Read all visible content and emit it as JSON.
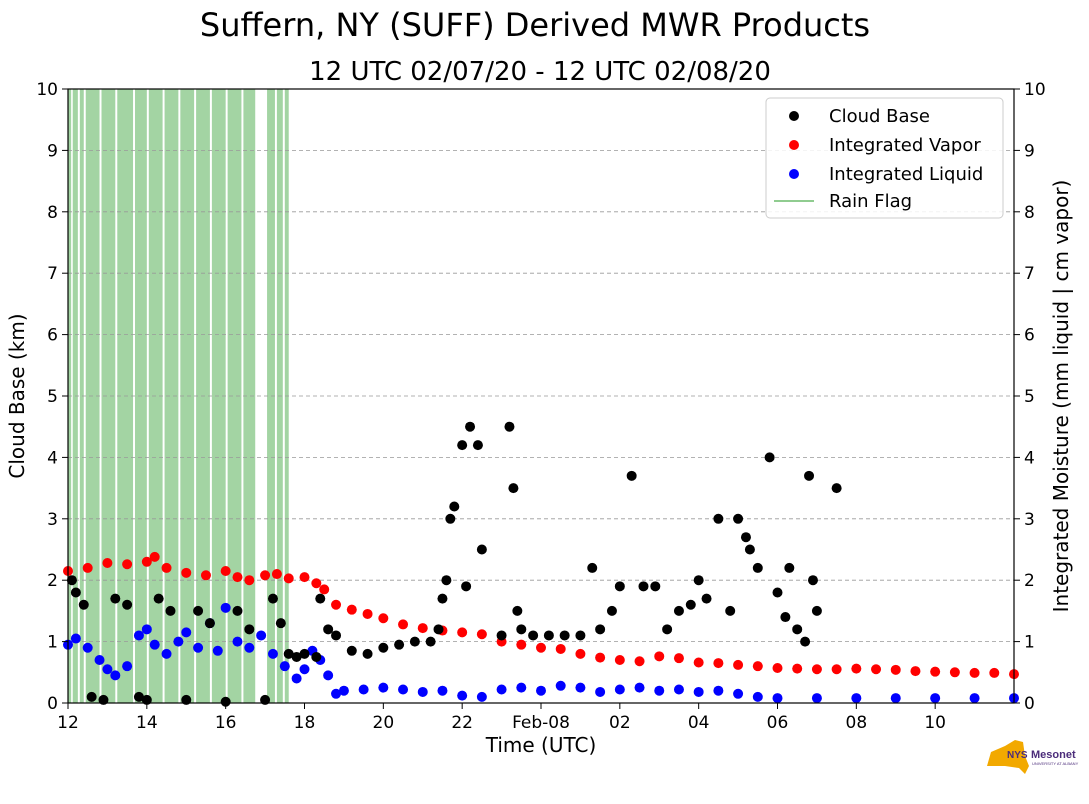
{
  "chart_data": {
    "type": "scatter",
    "title": "Suffern, NY (SUFF) Derived MWR Products",
    "subtitle": "12 UTC 02/07/20 - 12 UTC 02/08/20",
    "xlabel": "Time (UTC)",
    "ylabel": "Cloud Base (km)",
    "y2label": "Integrated Moisture (mm liquid | cm vapor)",
    "x_unit": "hours since 12 UTC 02/07/20",
    "xlim": [
      0,
      24
    ],
    "ylim": [
      0,
      10
    ],
    "y2lim": [
      0,
      10
    ],
    "x_ticks": [
      {
        "x": 0,
        "label": "12"
      },
      {
        "x": 2,
        "label": "14"
      },
      {
        "x": 4,
        "label": "16"
      },
      {
        "x": 6,
        "label": "18"
      },
      {
        "x": 8,
        "label": "20"
      },
      {
        "x": 10,
        "label": "22"
      },
      {
        "x": 12,
        "label": "Feb-08"
      },
      {
        "x": 14,
        "label": "02"
      },
      {
        "x": 16,
        "label": "04"
      },
      {
        "x": 18,
        "label": "06"
      },
      {
        "x": 20,
        "label": "08"
      },
      {
        "x": 22,
        "label": "10"
      }
    ],
    "y_ticks": [
      "0",
      "1",
      "2",
      "3",
      "4",
      "5",
      "6",
      "7",
      "8",
      "9",
      "10"
    ],
    "grid": "horizontal dashed",
    "legend_position": "top-right",
    "legend": [
      {
        "label": "Cloud Base",
        "type": "marker",
        "color": "#000000"
      },
      {
        "label": "Integrated Vapor",
        "type": "marker",
        "color": "#ff0000"
      },
      {
        "label": "Integrated Liquid",
        "type": "marker",
        "color": "#0000ff"
      },
      {
        "label": "Rain Flag",
        "type": "line",
        "color": "#2ca02c"
      }
    ],
    "rain_flag_intervals": [
      [
        0.0,
        0.08
      ],
      [
        0.12,
        0.25
      ],
      [
        0.3,
        0.4
      ],
      [
        0.45,
        0.8
      ],
      [
        0.85,
        1.2
      ],
      [
        1.25,
        1.65
      ],
      [
        1.7,
        2.0
      ],
      [
        2.05,
        2.4
      ],
      [
        2.45,
        2.8
      ],
      [
        2.85,
        3.2
      ],
      [
        3.25,
        3.6
      ],
      [
        3.65,
        4.0
      ],
      [
        4.05,
        4.4
      ],
      [
        4.45,
        4.75
      ],
      [
        5.05,
        5.25
      ],
      [
        5.3,
        5.45
      ],
      [
        5.5,
        5.6
      ]
    ],
    "series": [
      {
        "name": "Integrated Vapor",
        "color": "#ff0000",
        "points": [
          [
            0,
            2.15
          ],
          [
            0.5,
            2.2
          ],
          [
            1,
            2.28
          ],
          [
            1.5,
            2.26
          ],
          [
            2,
            2.3
          ],
          [
            2.2,
            2.38
          ],
          [
            2.5,
            2.2
          ],
          [
            3,
            2.12
          ],
          [
            3.5,
            2.08
          ],
          [
            4,
            2.15
          ],
          [
            4.3,
            2.05
          ],
          [
            4.6,
            2.0
          ],
          [
            5,
            2.08
          ],
          [
            5.3,
            2.1
          ],
          [
            5.6,
            2.03
          ],
          [
            6,
            2.05
          ],
          [
            6.3,
            1.95
          ],
          [
            6.5,
            1.85
          ],
          [
            6.8,
            1.6
          ],
          [
            7.2,
            1.52
          ],
          [
            7.6,
            1.45
          ],
          [
            8,
            1.38
          ],
          [
            8.5,
            1.28
          ],
          [
            9,
            1.22
          ],
          [
            9.5,
            1.18
          ],
          [
            10,
            1.15
          ],
          [
            10.5,
            1.12
          ],
          [
            11,
            1.0
          ],
          [
            11.5,
            0.95
          ],
          [
            12,
            0.9
          ],
          [
            12.5,
            0.88
          ],
          [
            13,
            0.8
          ],
          [
            13.5,
            0.74
          ],
          [
            14,
            0.7
          ],
          [
            14.5,
            0.68
          ],
          [
            15,
            0.76
          ],
          [
            15.5,
            0.73
          ],
          [
            16,
            0.66
          ],
          [
            16.5,
            0.65
          ],
          [
            17,
            0.62
          ],
          [
            17.5,
            0.6
          ],
          [
            18,
            0.57
          ],
          [
            18.5,
            0.56
          ],
          [
            19,
            0.55
          ],
          [
            19.5,
            0.55
          ],
          [
            20,
            0.56
          ],
          [
            20.5,
            0.55
          ],
          [
            21,
            0.54
          ],
          [
            21.5,
            0.52
          ],
          [
            22,
            0.51
          ],
          [
            22.5,
            0.5
          ],
          [
            23,
            0.49
          ],
          [
            23.5,
            0.49
          ],
          [
            24,
            0.47
          ]
        ]
      },
      {
        "name": "Integrated Liquid",
        "color": "#0000ff",
        "points": [
          [
            0,
            0.95
          ],
          [
            0.2,
            1.05
          ],
          [
            0.5,
            0.9
          ],
          [
            0.8,
            0.7
          ],
          [
            1,
            0.55
          ],
          [
            1.2,
            0.45
          ],
          [
            1.5,
            0.6
          ],
          [
            1.8,
            1.1
          ],
          [
            2,
            1.2
          ],
          [
            2.2,
            0.95
          ],
          [
            2.5,
            0.8
          ],
          [
            2.8,
            1.0
          ],
          [
            3,
            1.15
          ],
          [
            3.3,
            0.9
          ],
          [
            3.6,
            1.3
          ],
          [
            3.8,
            0.85
          ],
          [
            4,
            1.55
          ],
          [
            4.3,
            1.0
          ],
          [
            4.6,
            0.9
          ],
          [
            4.9,
            1.1
          ],
          [
            5.2,
            0.8
          ],
          [
            5.5,
            0.6
          ],
          [
            5.8,
            0.4
          ],
          [
            6,
            0.55
          ],
          [
            6.2,
            0.85
          ],
          [
            6.4,
            0.7
          ],
          [
            6.6,
            0.45
          ],
          [
            6.8,
            0.15
          ],
          [
            7,
            0.2
          ],
          [
            7.5,
            0.22
          ],
          [
            8,
            0.25
          ],
          [
            8.5,
            0.22
          ],
          [
            9,
            0.18
          ],
          [
            9.5,
            0.2
          ],
          [
            10,
            0.12
          ],
          [
            10.5,
            0.1
          ],
          [
            11,
            0.22
          ],
          [
            11.5,
            0.25
          ],
          [
            12,
            0.2
          ],
          [
            12.5,
            0.28
          ],
          [
            13,
            0.25
          ],
          [
            13.5,
            0.18
          ],
          [
            14,
            0.22
          ],
          [
            14.5,
            0.25
          ],
          [
            15,
            0.2
          ],
          [
            15.5,
            0.22
          ],
          [
            16,
            0.18
          ],
          [
            16.5,
            0.2
          ],
          [
            17,
            0.15
          ],
          [
            17.5,
            0.1
          ],
          [
            18,
            0.08
          ],
          [
            19,
            0.08
          ],
          [
            20,
            0.08
          ],
          [
            21,
            0.08
          ],
          [
            22,
            0.08
          ],
          [
            23,
            0.08
          ],
          [
            24,
            0.08
          ]
        ]
      },
      {
        "name": "Cloud Base",
        "color": "#000000",
        "points": [
          [
            0.1,
            2.0
          ],
          [
            0.2,
            1.8
          ],
          [
            0.4,
            1.6
          ],
          [
            0.6,
            0.1
          ],
          [
            0.9,
            0.05
          ],
          [
            1.2,
            1.7
          ],
          [
            1.5,
            1.6
          ],
          [
            1.8,
            0.1
          ],
          [
            2,
            0.05
          ],
          [
            2.3,
            1.7
          ],
          [
            2.6,
            1.5
          ],
          [
            3,
            0.05
          ],
          [
            3.3,
            1.5
          ],
          [
            3.6,
            1.3
          ],
          [
            4,
            0.02
          ],
          [
            4.3,
            1.5
          ],
          [
            4.6,
            1.2
          ],
          [
            5,
            0.05
          ],
          [
            5.2,
            1.7
          ],
          [
            5.4,
            1.3
          ],
          [
            5.6,
            0.8
          ],
          [
            5.8,
            0.75
          ],
          [
            6,
            0.8
          ],
          [
            6.3,
            0.75
          ],
          [
            6.4,
            1.7
          ],
          [
            6.6,
            1.2
          ],
          [
            6.8,
            1.1
          ],
          [
            7.2,
            0.85
          ],
          [
            7.6,
            0.8
          ],
          [
            8,
            0.9
          ],
          [
            8.4,
            0.95
          ],
          [
            8.8,
            1.0
          ],
          [
            9.2,
            1.0
          ],
          [
            9.4,
            1.2
          ],
          [
            9.5,
            1.7
          ],
          [
            9.6,
            2.0
          ],
          [
            9.7,
            3.0
          ],
          [
            9.8,
            3.2
          ],
          [
            10.0,
            4.2
          ],
          [
            10.1,
            1.9
          ],
          [
            10.2,
            4.5
          ],
          [
            10.4,
            4.2
          ],
          [
            10.5,
            2.5
          ],
          [
            11,
            1.1
          ],
          [
            11.2,
            4.5
          ],
          [
            11.3,
            3.5
          ],
          [
            11.4,
            1.5
          ],
          [
            11.5,
            1.2
          ],
          [
            11.8,
            1.1
          ],
          [
            12.2,
            1.1
          ],
          [
            12.6,
            1.1
          ],
          [
            13,
            1.1
          ],
          [
            13.3,
            2.2
          ],
          [
            13.5,
            1.2
          ],
          [
            13.8,
            1.5
          ],
          [
            14,
            1.9
          ],
          [
            14.3,
            3.7
          ],
          [
            14.6,
            1.9
          ],
          [
            14.9,
            1.9
          ],
          [
            15.2,
            1.2
          ],
          [
            15.5,
            1.5
          ],
          [
            15.8,
            1.6
          ],
          [
            16.0,
            2.0
          ],
          [
            16.2,
            1.7
          ],
          [
            16.5,
            3.0
          ],
          [
            16.8,
            1.5
          ],
          [
            17.0,
            3.0
          ],
          [
            17.2,
            2.7
          ],
          [
            17.3,
            2.5
          ],
          [
            17.5,
            2.2
          ],
          [
            17.8,
            4.0
          ],
          [
            18.0,
            1.8
          ],
          [
            18.2,
            1.4
          ],
          [
            18.3,
            2.2
          ],
          [
            18.5,
            1.2
          ],
          [
            18.7,
            1.0
          ],
          [
            18.8,
            3.7
          ],
          [
            18.9,
            2.0
          ],
          [
            19.0,
            1.5
          ],
          [
            19.5,
            3.5
          ]
        ]
      }
    ]
  }
}
